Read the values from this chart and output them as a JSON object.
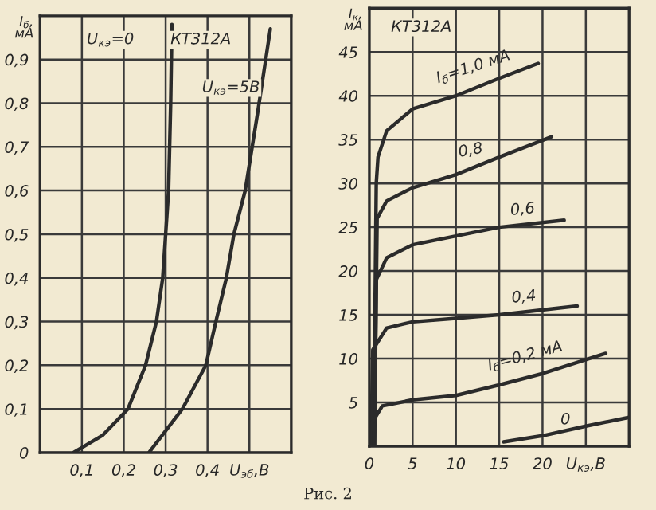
{
  "chart_data": [
    {
      "type": "line",
      "ylabel": "I$_{б}$,\nмА",
      "xlabel": "U$_{эб}$,В",
      "annotations": [
        "КТ312А",
        "Рис. 2"
      ],
      "grid": true,
      "legend": false,
      "xlim": [
        0,
        0.6
      ],
      "ylim": [
        0,
        1.0
      ],
      "xticks": [
        {
          "value": 0.1,
          "label": "0,1"
        },
        {
          "value": 0.2,
          "label": "0,2"
        },
        {
          "value": 0.3,
          "label": "0,3"
        },
        {
          "value": 0.4,
          "label": "0,4"
        },
        {
          "value": 0.5,
          "label": null
        }
      ],
      "yticks": [
        0,
        {
          "value": 0.1,
          "label": "0,1"
        },
        {
          "value": 0.2,
          "label": "0,2"
        },
        {
          "value": 0.3,
          "label": "0,3"
        },
        {
          "value": 0.4,
          "label": "0,4"
        },
        {
          "value": 0.5,
          "label": "0,5"
        },
        {
          "value": 0.6,
          "label": "0,6"
        },
        {
          "value": 0.7,
          "label": "0,7"
        },
        {
          "value": 0.8,
          "label": "0,8"
        },
        {
          "value": 0.9,
          "label": "0,9"
        }
      ],
      "series": [
        {
          "name": "U$_{кэ}$=0",
          "color": "#2b2b2b",
          "x": [
            0.08,
            0.15,
            0.21,
            0.252,
            0.278,
            0.293,
            0.3,
            0.307,
            0.312,
            0.315
          ],
          "values": [
            0,
            0.04,
            0.1,
            0.2,
            0.3,
            0.4,
            0.5,
            0.6,
            0.8,
            0.98
          ]
        },
        {
          "name": "U$_{кэ}$=5В",
          "color": "#2b2b2b",
          "x": [
            0.26,
            0.3,
            0.34,
            0.396,
            0.42,
            0.445,
            0.463,
            0.49,
            0.52,
            0.55
          ],
          "values": [
            0,
            0.05,
            0.1,
            0.2,
            0.3,
            0.4,
            0.5,
            0.6,
            0.78,
            0.97
          ]
        }
      ]
    },
    {
      "type": "line",
      "ylabel": "I$_{к}$,\nмА",
      "xlabel": "U$_{кэ}$,В",
      "annotations": [
        "КТ312А"
      ],
      "grid": true,
      "legend": false,
      "xlim": [
        0,
        30
      ],
      "ylim": [
        0,
        50
      ],
      "xticks": [
        0,
        5,
        10,
        15,
        20,
        {
          "value": 25,
          "label": null
        }
      ],
      "yticks": [
        5,
        10,
        15,
        20,
        25,
        30,
        35,
        40,
        45
      ],
      "series": [
        {
          "name": "I$_{б}$=1,0 мА",
          "color": "#2b2b2b",
          "x": [
            0.5,
            0.7,
            0.8,
            1,
            2,
            5,
            10,
            15,
            19.5
          ],
          "values": [
            0,
            20,
            30,
            33,
            36,
            38.5,
            40,
            42,
            43.7
          ]
        },
        {
          "name": "0,8",
          "color": "#2b2b2b",
          "x": [
            0.6,
            0.9,
            2,
            5,
            10,
            15,
            21
          ],
          "values": [
            0,
            26,
            28,
            29.5,
            31,
            33,
            35.3
          ]
        },
        {
          "name": "0,6",
          "color": "#2b2b2b",
          "x": [
            0.6,
            0.8,
            2,
            5,
            10,
            15,
            22.5
          ],
          "values": [
            0,
            19,
            21.5,
            23,
            24,
            25,
            25.8
          ]
        },
        {
          "name": "0,4",
          "color": "#2b2b2b",
          "x": [
            0.2,
            0.4,
            2,
            5,
            10,
            15,
            24
          ],
          "values": [
            0,
            11,
            13.5,
            14.2,
            14.6,
            15,
            16
          ]
        },
        {
          "name": "I$_{б}$=0,2 мА",
          "color": "#2b2b2b",
          "x": [
            0.1,
            0.2,
            1.5,
            5,
            10,
            15,
            20,
            27.3
          ],
          "values": [
            0,
            2.5,
            4.6,
            5.3,
            5.8,
            7,
            8.3,
            10.6
          ]
        },
        {
          "name": "0",
          "color": "#2b2b2b",
          "x": [
            15.5,
            20,
            25,
            30
          ],
          "values": [
            0.5,
            1.2,
            2.3,
            3.3
          ]
        }
      ]
    }
  ]
}
